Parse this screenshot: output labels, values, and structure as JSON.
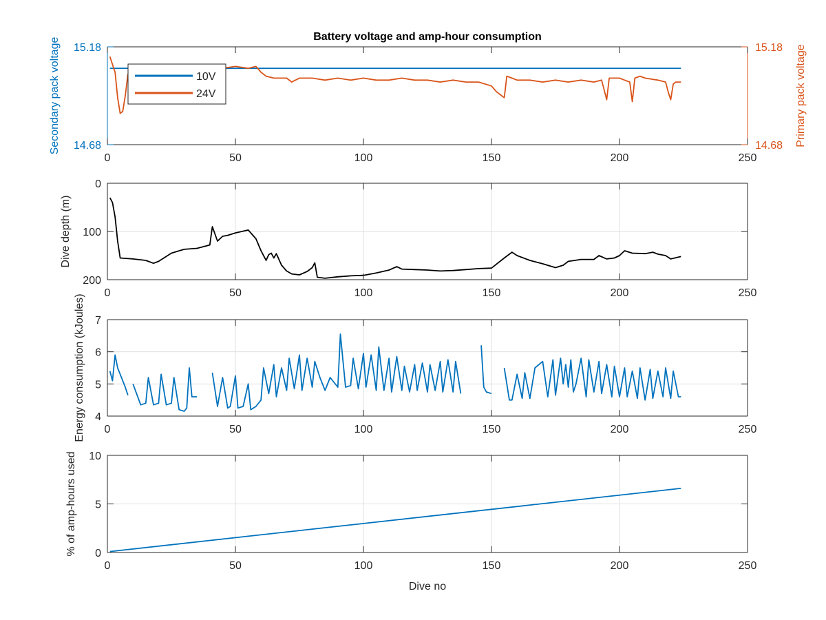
{
  "title": "Battery voltage and amp-hour consumption",
  "colors": {
    "blue": "#0072BD",
    "orange": "#D95319",
    "black": "#000000",
    "grid": "#DFDFDF"
  },
  "chart_data": [
    {
      "type": "line",
      "title": "Battery voltage and amp-hour consumption",
      "xlabel": "",
      "ylabel_left": "Secondary pack voltage",
      "ylabel_right": "Primary pack voltage",
      "xlim": [
        0,
        250
      ],
      "ylim_left": [
        14.68,
        15.18
      ],
      "ylim_right": [
        14.68,
        15.18
      ],
      "xticks": [
        "0",
        "50",
        "100",
        "150",
        "200",
        "250"
      ],
      "yticks_left": [
        "14.68",
        "15.18"
      ],
      "yticks_right": [
        "14.68",
        "15.18"
      ],
      "grid": false,
      "legend": "top-left",
      "series": [
        {
          "name": "10V",
          "axis": "left",
          "x": [
            1,
            224
          ],
          "y": [
            15.07,
            15.07
          ]
        },
        {
          "name": "24V",
          "axis": "right",
          "x": [
            1,
            2,
            3,
            4,
            5,
            6,
            7,
            8,
            10,
            15,
            20,
            25,
            30,
            35,
            40,
            45,
            50,
            55,
            58,
            60,
            62,
            65,
            70,
            72,
            75,
            80,
            85,
            90,
            95,
            100,
            105,
            110,
            115,
            120,
            125,
            130,
            135,
            140,
            145,
            150,
            152,
            154,
            155,
            156,
            158,
            160,
            165,
            170,
            175,
            180,
            185,
            190,
            193,
            194,
            195,
            196,
            198,
            200,
            202,
            204,
            205,
            206,
            208,
            210,
            215,
            218,
            219,
            220,
            221,
            222,
            224
          ],
          "y": [
            15.13,
            15.09,
            15.05,
            14.92,
            14.84,
            14.85,
            14.93,
            15.04,
            15.06,
            15.07,
            15.07,
            15.07,
            15.07,
            15.07,
            15.07,
            15.07,
            15.08,
            15.07,
            15.08,
            15.05,
            15.03,
            15.02,
            15.02,
            15.0,
            15.02,
            15.02,
            15.01,
            15.02,
            15.01,
            15.02,
            15.01,
            15.01,
            15.02,
            15.01,
            15.01,
            15.0,
            15.01,
            15.0,
            15.0,
            14.98,
            14.95,
            14.93,
            14.92,
            15.03,
            15.02,
            15.01,
            15.01,
            15.0,
            15.01,
            15.0,
            15.01,
            15.0,
            15.01,
            14.96,
            14.91,
            15.02,
            15.02,
            15.02,
            15.01,
            15.0,
            14.9,
            15.02,
            15.03,
            15.02,
            15.01,
            15.0,
            14.95,
            14.91,
            14.99,
            15.0,
            15.0
          ]
        }
      ]
    },
    {
      "type": "line",
      "xlabel": "",
      "ylabel": "Dive depth (m)",
      "xlim": [
        0,
        250
      ],
      "ylim": [
        0,
        200
      ],
      "y_reversed": true,
      "xticks": [
        "0",
        "50",
        "100",
        "150",
        "200",
        "250"
      ],
      "yticks": [
        "0",
        "100",
        "200"
      ],
      "grid": true,
      "series": [
        {
          "x": [
            1,
            2,
            3,
            4,
            5,
            10,
            15,
            18,
            20,
            25,
            30,
            35,
            40,
            41,
            43,
            45,
            47,
            50,
            55,
            58,
            60,
            62,
            63,
            64,
            65,
            66,
            68,
            70,
            72,
            75,
            78,
            80,
            81,
            82,
            85,
            90,
            95,
            100,
            105,
            110,
            113,
            115,
            120,
            125,
            130,
            135,
            140,
            145,
            150,
            155,
            158,
            160,
            165,
            170,
            175,
            178,
            180,
            185,
            190,
            192,
            195,
            198,
            200,
            202,
            205,
            210,
            213,
            215,
            218,
            220,
            224
          ],
          "y": [
            30,
            40,
            70,
            120,
            155,
            157,
            160,
            166,
            162,
            145,
            137,
            135,
            128,
            90,
            120,
            110,
            108,
            103,
            97,
            115,
            140,
            160,
            148,
            145,
            155,
            146,
            170,
            182,
            188,
            190,
            183,
            175,
            165,
            195,
            197,
            194,
            192,
            191,
            186,
            180,
            173,
            178,
            179,
            180,
            182,
            181,
            179,
            177,
            176,
            155,
            143,
            150,
            160,
            167,
            175,
            170,
            162,
            158,
            158,
            150,
            157,
            155,
            150,
            140,
            145,
            146,
            143,
            147,
            150,
            157,
            152
          ]
        }
      ]
    },
    {
      "type": "line",
      "xlabel": "",
      "ylabel": "Energy consumption (kJoules)",
      "xlim": [
        0,
        250
      ],
      "ylim": [
        4,
        7
      ],
      "xticks": [
        "0",
        "50",
        "100",
        "150",
        "200",
        "250"
      ],
      "yticks": [
        "4",
        "5",
        "6",
        "7"
      ],
      "grid": true,
      "series": [
        {
          "x": [
            [
              1,
              2,
              3,
              4,
              5,
              6,
              7,
              8
            ],
            [
              10,
              13,
              15,
              16,
              18,
              20,
              21,
              23,
              25,
              26,
              28,
              30,
              31,
              32,
              33,
              35
            ],
            [
              41,
              43,
              45,
              47,
              48,
              50,
              51,
              53,
              55,
              56,
              58,
              60,
              61,
              63,
              65,
              66,
              68,
              70,
              71,
              73,
              75,
              76,
              78,
              80,
              81,
              83,
              85,
              87,
              90,
              91,
              93,
              95,
              96,
              98,
              100,
              101,
              103,
              105,
              106,
              108,
              110,
              111,
              113,
              115,
              116,
              118,
              120,
              121,
              123,
              125,
              126,
              128,
              130,
              131,
              133,
              135,
              136,
              138
            ],
            [
              146,
              147,
              148,
              150
            ],
            [
              155,
              157,
              158,
              160,
              162,
              163,
              165,
              167,
              170,
              172,
              174,
              175,
              177,
              178,
              179,
              180,
              181,
              182,
              183,
              185,
              187,
              188,
              190,
              192,
              193,
              195,
              197,
              198,
              200,
              202,
              203,
              205,
              207,
              208,
              210,
              212,
              213,
              215,
              217,
              218,
              220,
              221,
              223,
              224
            ]
          ],
          "y": [
            [
              5.4,
              5.1,
              5.9,
              5.5,
              5.3,
              5.1,
              4.9,
              4.65
            ],
            [
              5.0,
              4.35,
              4.4,
              5.2,
              4.35,
              4.4,
              5.3,
              4.35,
              4.4,
              5.2,
              4.2,
              4.15,
              4.25,
              5.5,
              4.6,
              4.6
            ],
            [
              5.35,
              4.3,
              5.2,
              4.25,
              4.3,
              5.25,
              4.25,
              4.3,
              5.0,
              4.2,
              4.3,
              4.5,
              5.5,
              4.7,
              5.6,
              4.6,
              5.5,
              4.8,
              5.8,
              4.85,
              5.9,
              4.8,
              5.8,
              4.9,
              5.7,
              5.2,
              4.8,
              5.2,
              4.9,
              6.55,
              4.9,
              4.95,
              5.8,
              4.85,
              5.95,
              4.9,
              5.9,
              4.8,
              6.15,
              4.8,
              5.8,
              4.75,
              5.85,
              4.8,
              5.55,
              4.75,
              5.6,
              4.8,
              5.65,
              4.75,
              5.6,
              4.8,
              5.7,
              4.75,
              5.75,
              4.75,
              5.7,
              4.7
            ],
            [
              6.2,
              4.9,
              4.75,
              4.7
            ],
            [
              5.5,
              4.5,
              4.5,
              5.3,
              4.55,
              5.35,
              4.55,
              5.5,
              5.7,
              4.6,
              5.75,
              4.65,
              5.8,
              5.0,
              5.6,
              4.9,
              5.75,
              4.75,
              5.0,
              5.8,
              4.6,
              5.75,
              4.75,
              5.7,
              4.7,
              5.6,
              4.6,
              5.55,
              4.6,
              5.5,
              4.6,
              5.4,
              4.55,
              5.5,
              4.5,
              5.45,
              4.55,
              5.4,
              4.6,
              5.5,
              4.55,
              5.4,
              4.6,
              4.6
            ]
          ]
        }
      ]
    },
    {
      "type": "line",
      "xlabel": "Dive no",
      "ylabel": "% of amp-hours used",
      "xlim": [
        0,
        250
      ],
      "ylim": [
        0,
        10
      ],
      "xticks": [
        "0",
        "50",
        "100",
        "150",
        "200",
        "250"
      ],
      "yticks": [
        "0",
        "5",
        "10"
      ],
      "grid": true,
      "series": [
        {
          "x": [
            1,
            224
          ],
          "y": [
            0.1,
            6.6
          ]
        }
      ]
    }
  ]
}
